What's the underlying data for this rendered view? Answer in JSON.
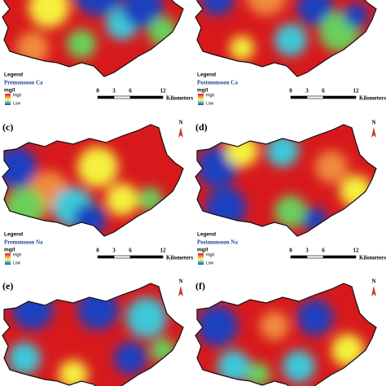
{
  "panels": [
    {
      "legend": {
        "title": "Legend",
        "name": "Premonsoon Ca",
        "unit": "mg/l",
        "high": "High",
        "low": "Low"
      },
      "scale": {
        "ticks": [
          "0",
          "3",
          "6",
          "12"
        ],
        "unit": "Kilometers"
      }
    },
    {
      "legend": {
        "title": "Legend",
        "name": "Postmonsoon Ca",
        "unit": "mg/l",
        "high": "High",
        "low": "Low"
      },
      "scale": {
        "ticks": [
          "0",
          "3",
          "6",
          "12"
        ],
        "unit": "Kilometers"
      }
    },
    {
      "label": "(c)",
      "north": "N",
      "legend": {
        "title": "Legend",
        "name": "Premonsoon Na",
        "unit": "mg/l",
        "high": "High",
        "low": "Low"
      },
      "scale": {
        "ticks": [
          "0",
          "3",
          "6",
          "12"
        ],
        "unit": "Kilometers"
      }
    },
    {
      "label": "(d)",
      "north": "N",
      "legend": {
        "title": "Legend",
        "name": "Postmonsoon Na",
        "unit": "mg/l",
        "high": "High",
        "low": "Low"
      },
      "scale": {
        "ticks": [
          "0",
          "3",
          "6",
          "12"
        ],
        "unit": "Kilometers"
      }
    },
    {
      "label": "(e)",
      "north": "N"
    },
    {
      "label": "(f)",
      "north": "N"
    }
  ]
}
